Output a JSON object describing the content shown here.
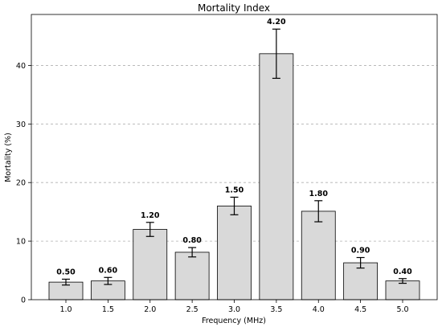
{
  "chart_data": {
    "type": "bar",
    "title": "Mortality Index",
    "xlabel": "Frequency (MHz)",
    "ylabel": "Mortality (%)",
    "categories": [
      "1.0",
      "1.5",
      "2.0",
      "2.5",
      "3.0",
      "3.5",
      "4.0",
      "4.5",
      "5.0"
    ],
    "values": [
      3.0,
      3.2,
      12.0,
      8.1,
      16.0,
      42.0,
      15.1,
      6.3,
      3.2
    ],
    "errors": [
      0.5,
      0.6,
      1.2,
      0.8,
      1.5,
      4.2,
      1.8,
      0.9,
      0.4
    ],
    "data_labels": [
      "0.50",
      "0.60",
      "1.20",
      "0.80",
      "1.50",
      "4.20",
      "1.80",
      "0.90",
      "0.40"
    ],
    "ylim": [
      0,
      48.7
    ],
    "yticks": [
      0,
      10,
      20,
      30,
      40
    ],
    "grid": "y-dashed",
    "colors": {
      "bar_fill": "#d9d9d9",
      "bar_edge": "#000000",
      "grid": "#b0b0b0"
    }
  }
}
